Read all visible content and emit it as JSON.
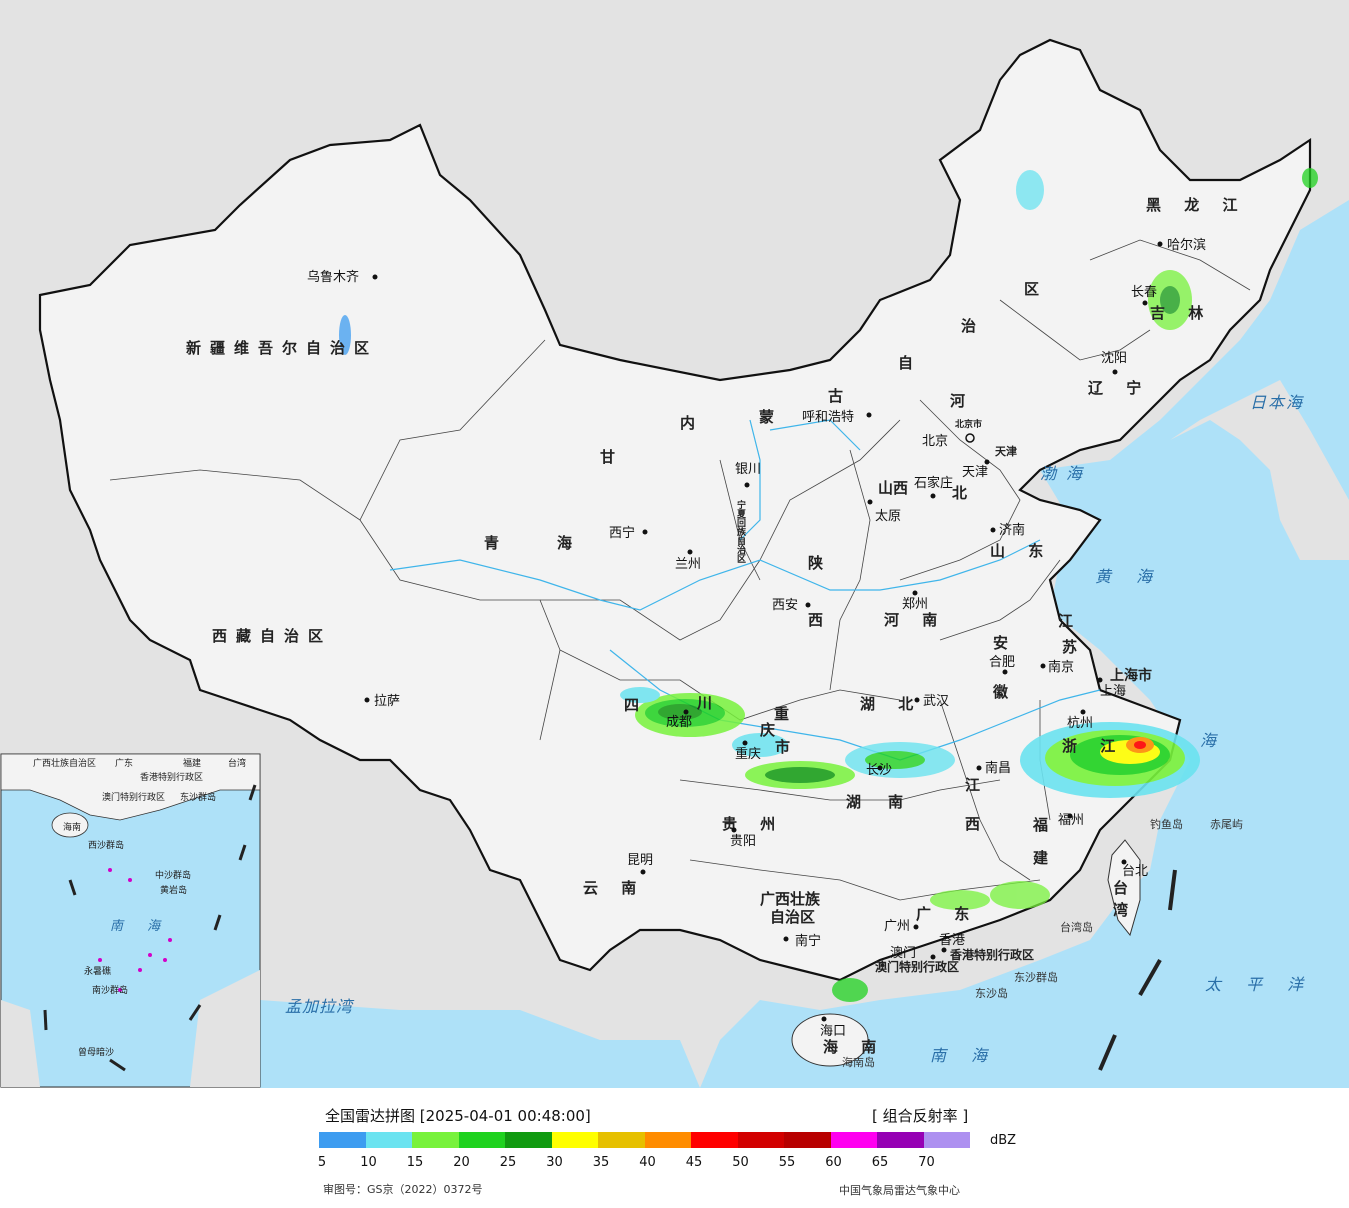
{
  "title": "全国雷达拼图 [2025-04-01 00:48:00]",
  "product": "[ 组合反射率 ]",
  "unit": "dBZ",
  "scale": [
    {
      "label": "5",
      "color": "#3d9cf0"
    },
    {
      "label": "10",
      "color": "#6be3f0"
    },
    {
      "label": "15",
      "color": "#78f23c"
    },
    {
      "label": "20",
      "color": "#1fd21f"
    },
    {
      "label": "25",
      "color": "#109a10"
    },
    {
      "label": "30",
      "color": "#ffff00"
    },
    {
      "label": "35",
      "color": "#e6c000"
    },
    {
      "label": "40",
      "color": "#ff8c00"
    },
    {
      "label": "45",
      "color": "#ff0000"
    },
    {
      "label": "50",
      "color": "#d20000"
    },
    {
      "label": "55",
      "color": "#b80000"
    },
    {
      "label": "60",
      "color": "#ff00f0"
    },
    {
      "label": "65",
      "color": "#9600b4"
    },
    {
      "label": "70",
      "color": "#ad90f0"
    }
  ],
  "footer_left": "审图号：GS京（2022）0372号",
  "footer_right": "中国气象局雷达气象中心",
  "provinces": {
    "xinjiang": "新疆维吾尔自治区",
    "xizang": "西藏自治区",
    "qinghai_a": "青",
    "qinghai_b": "海",
    "gansu": "甘",
    "sichuan_a": "四",
    "sichuan_b": "川",
    "neimeng_a": "内",
    "neimeng_b": "蒙",
    "neimeng_c": "古",
    "neimeng_d": "自",
    "neimeng_e": "治",
    "neimeng_f": "区",
    "heilongjiang": "黑 龙 江",
    "jilin": "吉 林",
    "liaoning": "辽 宁",
    "hebei_a": "河",
    "hebei_b": "北",
    "shanxi": "山西",
    "shaanxi_a": "陕",
    "shaanxi_b": "西",
    "shandong": "山 东",
    "henan": "河 南",
    "jiangsu_a": "江",
    "jiangsu_b": "苏",
    "anhui_a": "安",
    "anhui_b": "徽",
    "hubei": "湖 北",
    "hunan_a": "湖",
    "hunan_b": "南",
    "jiangxi_a": "江",
    "jiangxi_b": "西",
    "zhejiang": "浙 江",
    "fujian_a": "福",
    "fujian_b": "建",
    "guizhou": "贵 州",
    "yunnan": "云 南",
    "guangxi_a": "广西壮族",
    "guangxi_b": "自治区",
    "guangdong": "广 东",
    "hainan": "海 南",
    "taiwan_a": "台",
    "taiwan_b": "湾",
    "chongqing_a": "重",
    "chongqing_b": "庆",
    "chongqing_c": "市",
    "ningxia": "宁夏回族自治区",
    "shanghai": "上海市",
    "beijing_city": "北京市",
    "tianjin_city": "天津",
    "hongkong": "香港特别行政区",
    "macao": "澳门特别行政区"
  },
  "cities": {
    "urumqi": "乌鲁木齐",
    "lhasa": "拉萨",
    "xining": "西宁",
    "lanzhou": "兰州",
    "yinchuan": "银川",
    "huhehaote": "呼和浩特",
    "beijing": "北京",
    "tianjin": "天津",
    "shijiazhuang": "石家庄",
    "taiyuan": "太原",
    "jinan": "济南",
    "zhengzhou": "郑州",
    "xian": "西安",
    "chengdu": "成都",
    "chongqing": "重庆",
    "wuhan": "武汉",
    "hefei": "合肥",
    "nanjing": "南京",
    "shanghai": "上海",
    "hangzhou": "杭州",
    "changsha": "长沙",
    "nanchang": "南昌",
    "fuzhou": "福州",
    "guiyang": "贵阳",
    "kunming": "昆明",
    "nanning": "南宁",
    "guangzhou": "广州",
    "hongkong": "香港",
    "macao": "澳门",
    "haikou": "海口",
    "taibei": "台北",
    "shenyang": "沈阳",
    "changchun": "长春",
    "harbin": "哈尔滨"
  },
  "seas": {
    "bohai": "渤海",
    "huanghai": "黄 海",
    "donghai": "海",
    "nanhai": "南 海",
    "riben": "日本海",
    "taipingyang": "太 平 洋",
    "mengjiala": "孟加拉湾",
    "inset_nanhai": "南 海"
  },
  "islands": {
    "diaoyu": "钓鱼岛",
    "chiwei": "赤尾屿",
    "taiwan_dao": "台湾岛",
    "dongsha_qundao": "东沙群岛",
    "dongsha_dao": "东沙岛",
    "hainan_dao": "海南岛"
  },
  "inset": {
    "guangxi": "广西壮族自治区",
    "guangdong": "广东",
    "fujian": "福建",
    "taiwan": "台湾",
    "hongkong": "香港特别行政区",
    "macao": "澳门特别行政区",
    "dongsha": "东沙群岛",
    "hainan": "海南",
    "xisha": "西沙群岛",
    "zhongsha": "中沙群岛",
    "huangyan": "黄岩岛",
    "nansha": "南沙群岛",
    "yongshu": "永暑礁",
    "zengmu": "曾母暗沙"
  }
}
